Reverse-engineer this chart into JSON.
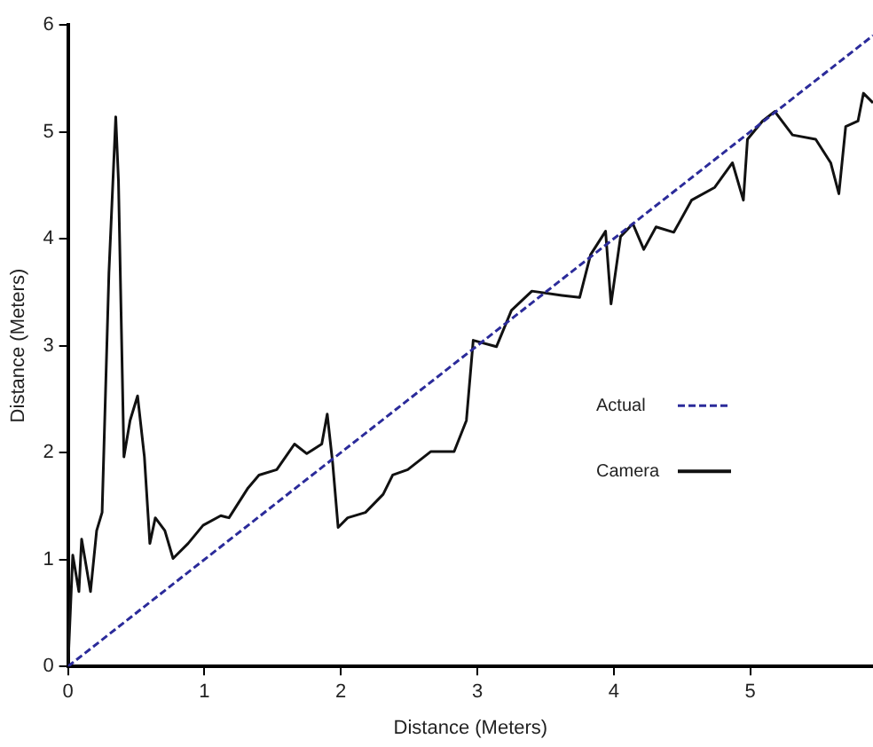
{
  "chart_data": {
    "type": "line",
    "xlabel": "Distance (Meters)",
    "ylabel": "Distance (Meters)",
    "xlim": [
      0,
      5.9
    ],
    "ylim": [
      0,
      6
    ],
    "xticks": [
      0,
      1,
      2,
      3,
      4,
      5
    ],
    "yticks": [
      0,
      1,
      2,
      3,
      4,
      5,
      6
    ],
    "grid": false,
    "legend": "bottom right",
    "marker": "none",
    "series": [
      {
        "name": "Actual",
        "color": "#2b2b9a",
        "line_style": "dashed",
        "x": [
          0,
          5.9
        ],
        "values": [
          0,
          5.9
        ]
      },
      {
        "name": "Camera",
        "color": "#111111",
        "line_style": "solid",
        "x": [
          0,
          0.035,
          0.08,
          0.1,
          0.165,
          0.21,
          0.25,
          0.3,
          0.35,
          0.37,
          0.41,
          0.455,
          0.51,
          0.56,
          0.6,
          0.64,
          0.71,
          0.77,
          0.88,
          0.99,
          1.12,
          1.18,
          1.32,
          1.4,
          1.53,
          1.66,
          1.75,
          1.86,
          1.9,
          1.94,
          1.98,
          2.05,
          2.18,
          2.31,
          2.38,
          2.49,
          2.66,
          2.83,
          2.92,
          2.97,
          3.14,
          3.25,
          3.4,
          3.62,
          3.75,
          3.83,
          3.94,
          3.98,
          4.05,
          4.14,
          4.22,
          4.31,
          4.44,
          4.57,
          4.74,
          4.87,
          4.95,
          4.98,
          5.09,
          5.18,
          5.31,
          5.48,
          5.59,
          5.65,
          5.7,
          5.79,
          5.83,
          5.9
        ],
        "values": [
          0,
          1.04,
          0.7,
          1.19,
          0.7,
          1.27,
          1.44,
          3.68,
          5.14,
          4.54,
          1.96,
          2.3,
          2.53,
          1.96,
          1.15,
          1.39,
          1.27,
          1.01,
          1.15,
          1.32,
          1.41,
          1.39,
          1.67,
          1.79,
          1.84,
          2.08,
          1.99,
          2.08,
          2.36,
          1.9,
          1.3,
          1.39,
          1.44,
          1.61,
          1.79,
          1.84,
          2.01,
          2.01,
          2.3,
          3.05,
          2.99,
          3.33,
          3.51,
          3.47,
          3.45,
          3.85,
          4.07,
          3.39,
          4.02,
          4.14,
          3.9,
          4.11,
          4.06,
          4.36,
          4.48,
          4.71,
          4.36,
          4.93,
          5.1,
          5.19,
          4.97,
          4.93,
          4.71,
          4.42,
          5.05,
          5.1,
          5.36,
          5.27
        ]
      }
    ]
  }
}
